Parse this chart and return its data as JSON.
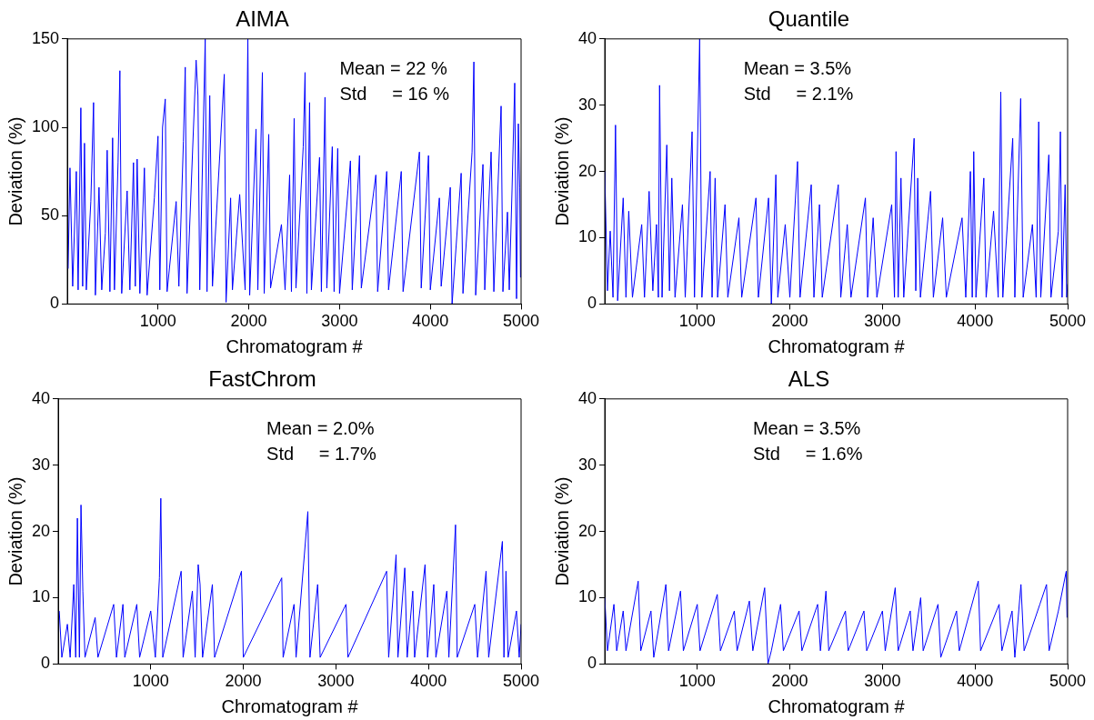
{
  "chart_data": [
    {
      "type": "line",
      "title": "AIMA",
      "xlabel": "Chromatogram #",
      "ylabel": "Deviation (%)",
      "color": "#0000ff",
      "xlim": [
        1,
        5000
      ],
      "xticks": [
        1000,
        2000,
        3000,
        4000,
        5000
      ],
      "ylim": [
        0,
        150
      ],
      "yticks": [
        0,
        50,
        100,
        150
      ],
      "annotations": [
        "Mean = 22 %",
        "Std     = 16 %"
      ],
      "x": [
        10,
        30,
        60,
        100,
        120,
        150,
        170,
        190,
        210,
        260,
        290,
        310,
        350,
        380,
        420,
        440,
        470,
        500,
        520,
        560,
        580,
        600,
        660,
        690,
        730,
        750,
        770,
        800,
        850,
        880,
        960,
        1000,
        1020,
        1050,
        1080,
        1100,
        1200,
        1230,
        1280,
        1300,
        1320,
        1420,
        1440,
        1460,
        1520,
        1540,
        1570,
        1600,
        1730,
        1750,
        1800,
        1820,
        1900,
        1960,
        1990,
        2010,
        2080,
        2100,
        2150,
        2170,
        2220,
        2240,
        2360,
        2400,
        2450,
        2470,
        2500,
        2520,
        2600,
        2620,
        2640,
        2670,
        2690,
        2780,
        2800,
        2840,
        2860,
        2920,
        2940,
        2980,
        3000,
        3120,
        3140,
        3220,
        3240,
        3400,
        3420,
        3520,
        3540,
        3680,
        3700,
        3880,
        3900,
        3980,
        4000,
        4100,
        4120,
        4220,
        4240,
        4340,
        4360,
        4460,
        4480,
        4500,
        4580,
        4600,
        4670,
        4700,
        4780,
        4800,
        4850,
        4870,
        4900,
        4930,
        4950,
        4970,
        4985,
        4994
      ],
      "values": [
        20,
        77,
        10,
        75,
        8,
        111,
        10,
        91,
        8,
        58,
        114,
        5,
        66,
        8,
        40,
        87,
        7,
        94,
        8,
        80,
        132,
        6,
        64,
        8,
        80,
        10,
        82,
        6,
        77,
        5,
        60,
        95,
        8,
        100,
        116,
        7,
        58,
        10,
        92,
        134,
        6,
        138,
        118,
        8,
        150,
        7,
        118,
        10,
        130,
        1,
        60,
        8,
        62,
        8,
        150,
        5,
        99,
        8,
        131,
        6,
        96,
        9,
        45,
        8,
        73,
        7,
        105,
        9,
        89,
        131,
        6,
        114,
        8,
        83,
        7,
        117,
        9,
        89,
        7,
        88,
        6,
        81,
        8,
        84,
        9,
        73,
        7,
        75,
        8,
        75,
        7,
        86,
        9,
        84,
        8,
        60,
        10,
        66,
        0,
        74,
        6,
        86,
        137,
        5,
        79,
        8,
        86,
        7,
        112,
        7,
        52,
        8,
        64,
        125,
        3,
        102,
        66,
        15
      ]
    },
    {
      "type": "line",
      "title": "Quantile",
      "xlabel": "Chromatogram #",
      "ylabel": "Deviation (%)",
      "color": "#0000ff",
      "xlim": [
        1,
        5000
      ],
      "xticks": [
        1000,
        2000,
        3000,
        4000,
        5000
      ],
      "ylim": [
        0,
        40
      ],
      "yticks": [
        0,
        10,
        20,
        30,
        40
      ],
      "annotations": [
        "Mean = 3.5%",
        "Std     = 2.1%"
      ],
      "x": [
        1,
        30,
        60,
        90,
        117,
        140,
        200,
        230,
        260,
        300,
        400,
        430,
        480,
        520,
        560,
        580,
        593,
        620,
        671,
        700,
        725,
        760,
        840,
        870,
        944,
        970,
        1026,
        1050,
        1139,
        1160,
        1193,
        1220,
        1300,
        1330,
        1450,
        1480,
        1634,
        1660,
        1770,
        1800,
        1849,
        1870,
        1950,
        2000,
        2083,
        2110,
        2231,
        2260,
        2320,
        2350,
        2523,
        2550,
        2620,
        2660,
        2816,
        2840,
        2900,
        2940,
        3100,
        3130,
        3147,
        3170,
        3200,
        3230,
        3342,
        3360,
        3381,
        3410,
        3520,
        3550,
        3650,
        3690,
        3860,
        3900,
        3950,
        3970,
        3986,
        4010,
        4095,
        4120,
        4200,
        4250,
        4278,
        4300,
        4407,
        4430,
        4493,
        4520,
        4620,
        4660,
        4688,
        4710,
        4797,
        4820,
        4900,
        4922,
        4940,
        4973,
        4990,
        5000
      ],
      "values": [
        20,
        2,
        11,
        1,
        27,
        0.5,
        16,
        1,
        14,
        1,
        12,
        1,
        17,
        2,
        12,
        1,
        33,
        1,
        24,
        2,
        19,
        1,
        15,
        1,
        26,
        1,
        40,
        1,
        20,
        1,
        19,
        1,
        15,
        1,
        13,
        1,
        16,
        1,
        16,
        0,
        19.5,
        1,
        12,
        1,
        21.5,
        1,
        18,
        1,
        15,
        1,
        18,
        1,
        12,
        1,
        16,
        1,
        13,
        1,
        15,
        1,
        23,
        1,
        19,
        1,
        25,
        2,
        19,
        1,
        17,
        1,
        13,
        1,
        13,
        1,
        20,
        1,
        23,
        1,
        19,
        1,
        14,
        1,
        32,
        1,
        25,
        1,
        31,
        1,
        12,
        1,
        27.5,
        1,
        22.5,
        1,
        11,
        26,
        1,
        18,
        1,
        3
      ]
    },
    {
      "type": "line",
      "title": "FastChrom",
      "xlabel": "Chromatogram #",
      "ylabel": "Deviation (%)",
      "color": "#0000ff",
      "xlim": [
        1,
        5000
      ],
      "xticks": [
        1000,
        2000,
        3000,
        4000,
        5000
      ],
      "ylim": [
        0,
        40
      ],
      "yticks": [
        0,
        10,
        20,
        30,
        40
      ],
      "annotations": [
        "Mean = 2.0%",
        "Std     = 1.7%"
      ],
      "x": [
        12,
        40,
        100,
        130,
        169,
        190,
        208,
        230,
        247,
        267,
        290,
        400,
        430,
        600,
        630,
        700,
        720,
        850,
        880,
        1000,
        1050,
        1094,
        1109,
        1130,
        1329,
        1350,
        1450,
        1480,
        1513,
        1533,
        1560,
        1666,
        1690,
        1980,
        2000,
        2415,
        2430,
        2548,
        2570,
        2697,
        2720,
        2803,
        2830,
        3109,
        3130,
        3548,
        3570,
        3650,
        3670,
        3744,
        3770,
        3830,
        3850,
        3963,
        3990,
        4057,
        4080,
        4198,
        4220,
        4292,
        4310,
        4500,
        4530,
        4622,
        4650,
        4798,
        4815,
        4837,
        4860,
        4950,
        4980,
        5000
      ],
      "values": [
        8,
        1,
        6,
        1,
        12,
        1,
        22,
        1,
        24,
        11,
        1,
        7,
        1,
        9,
        1,
        9,
        1,
        9,
        1,
        8,
        1,
        13,
        25,
        1,
        14,
        1,
        11,
        1,
        15,
        12,
        1,
        12,
        1,
        14,
        1,
        13,
        1,
        9,
        1,
        23,
        1,
        12,
        1,
        9,
        1,
        14,
        1,
        16.5,
        1,
        14.5,
        1,
        11,
        1,
        15,
        1,
        12,
        1,
        11,
        1,
        21,
        1,
        9,
        1,
        14,
        1,
        18.5,
        1,
        14,
        1,
        8,
        1,
        6
      ]
    },
    {
      "type": "line",
      "title": "ALS",
      "xlabel": "Chromatogram #",
      "ylabel": "Deviation (%)",
      "color": "#0000ff",
      "xlim": [
        1,
        5000
      ],
      "xticks": [
        1000,
        2000,
        3000,
        4000,
        5000
      ],
      "ylim": [
        0,
        40
      ],
      "yticks": [
        0,
        10,
        20,
        30,
        40
      ],
      "annotations": [
        "Mean = 3.5%",
        "Std     = 1.6%"
      ],
      "x": [
        1,
        30,
        100,
        130,
        200,
        230,
        362,
        390,
        500,
        530,
        661,
        690,
        819,
        850,
        1000,
        1030,
        1216,
        1250,
        1400,
        1430,
        1563,
        1600,
        1728,
        1764,
        1800,
        1900,
        1930,
        2100,
        2130,
        2300,
        2330,
        2390,
        2420,
        2600,
        2630,
        2800,
        2830,
        3000,
        3030,
        3138,
        3170,
        3300,
        3330,
        3413,
        3440,
        3600,
        3630,
        3800,
        3830,
        4035,
        4060,
        4260,
        4290,
        4400,
        4430,
        4496,
        4530,
        4700,
        4772,
        4800,
        4900,
        4985,
        4994
      ],
      "values": [
        10,
        2,
        9,
        2,
        8,
        2,
        12.5,
        2,
        8,
        1,
        12,
        2,
        11,
        2,
        9,
        2,
        10.5,
        2,
        8,
        2,
        9.5,
        2,
        11.5,
        0,
        2,
        9,
        2,
        8,
        2,
        9,
        2,
        11,
        2,
        8,
        2,
        8,
        2,
        8,
        2,
        11.5,
        2,
        8,
        2,
        10,
        2,
        9,
        1,
        8,
        2,
        12.5,
        2,
        9,
        2,
        8,
        1,
        12,
        2,
        9,
        12,
        2,
        8,
        14,
        7
      ]
    }
  ]
}
